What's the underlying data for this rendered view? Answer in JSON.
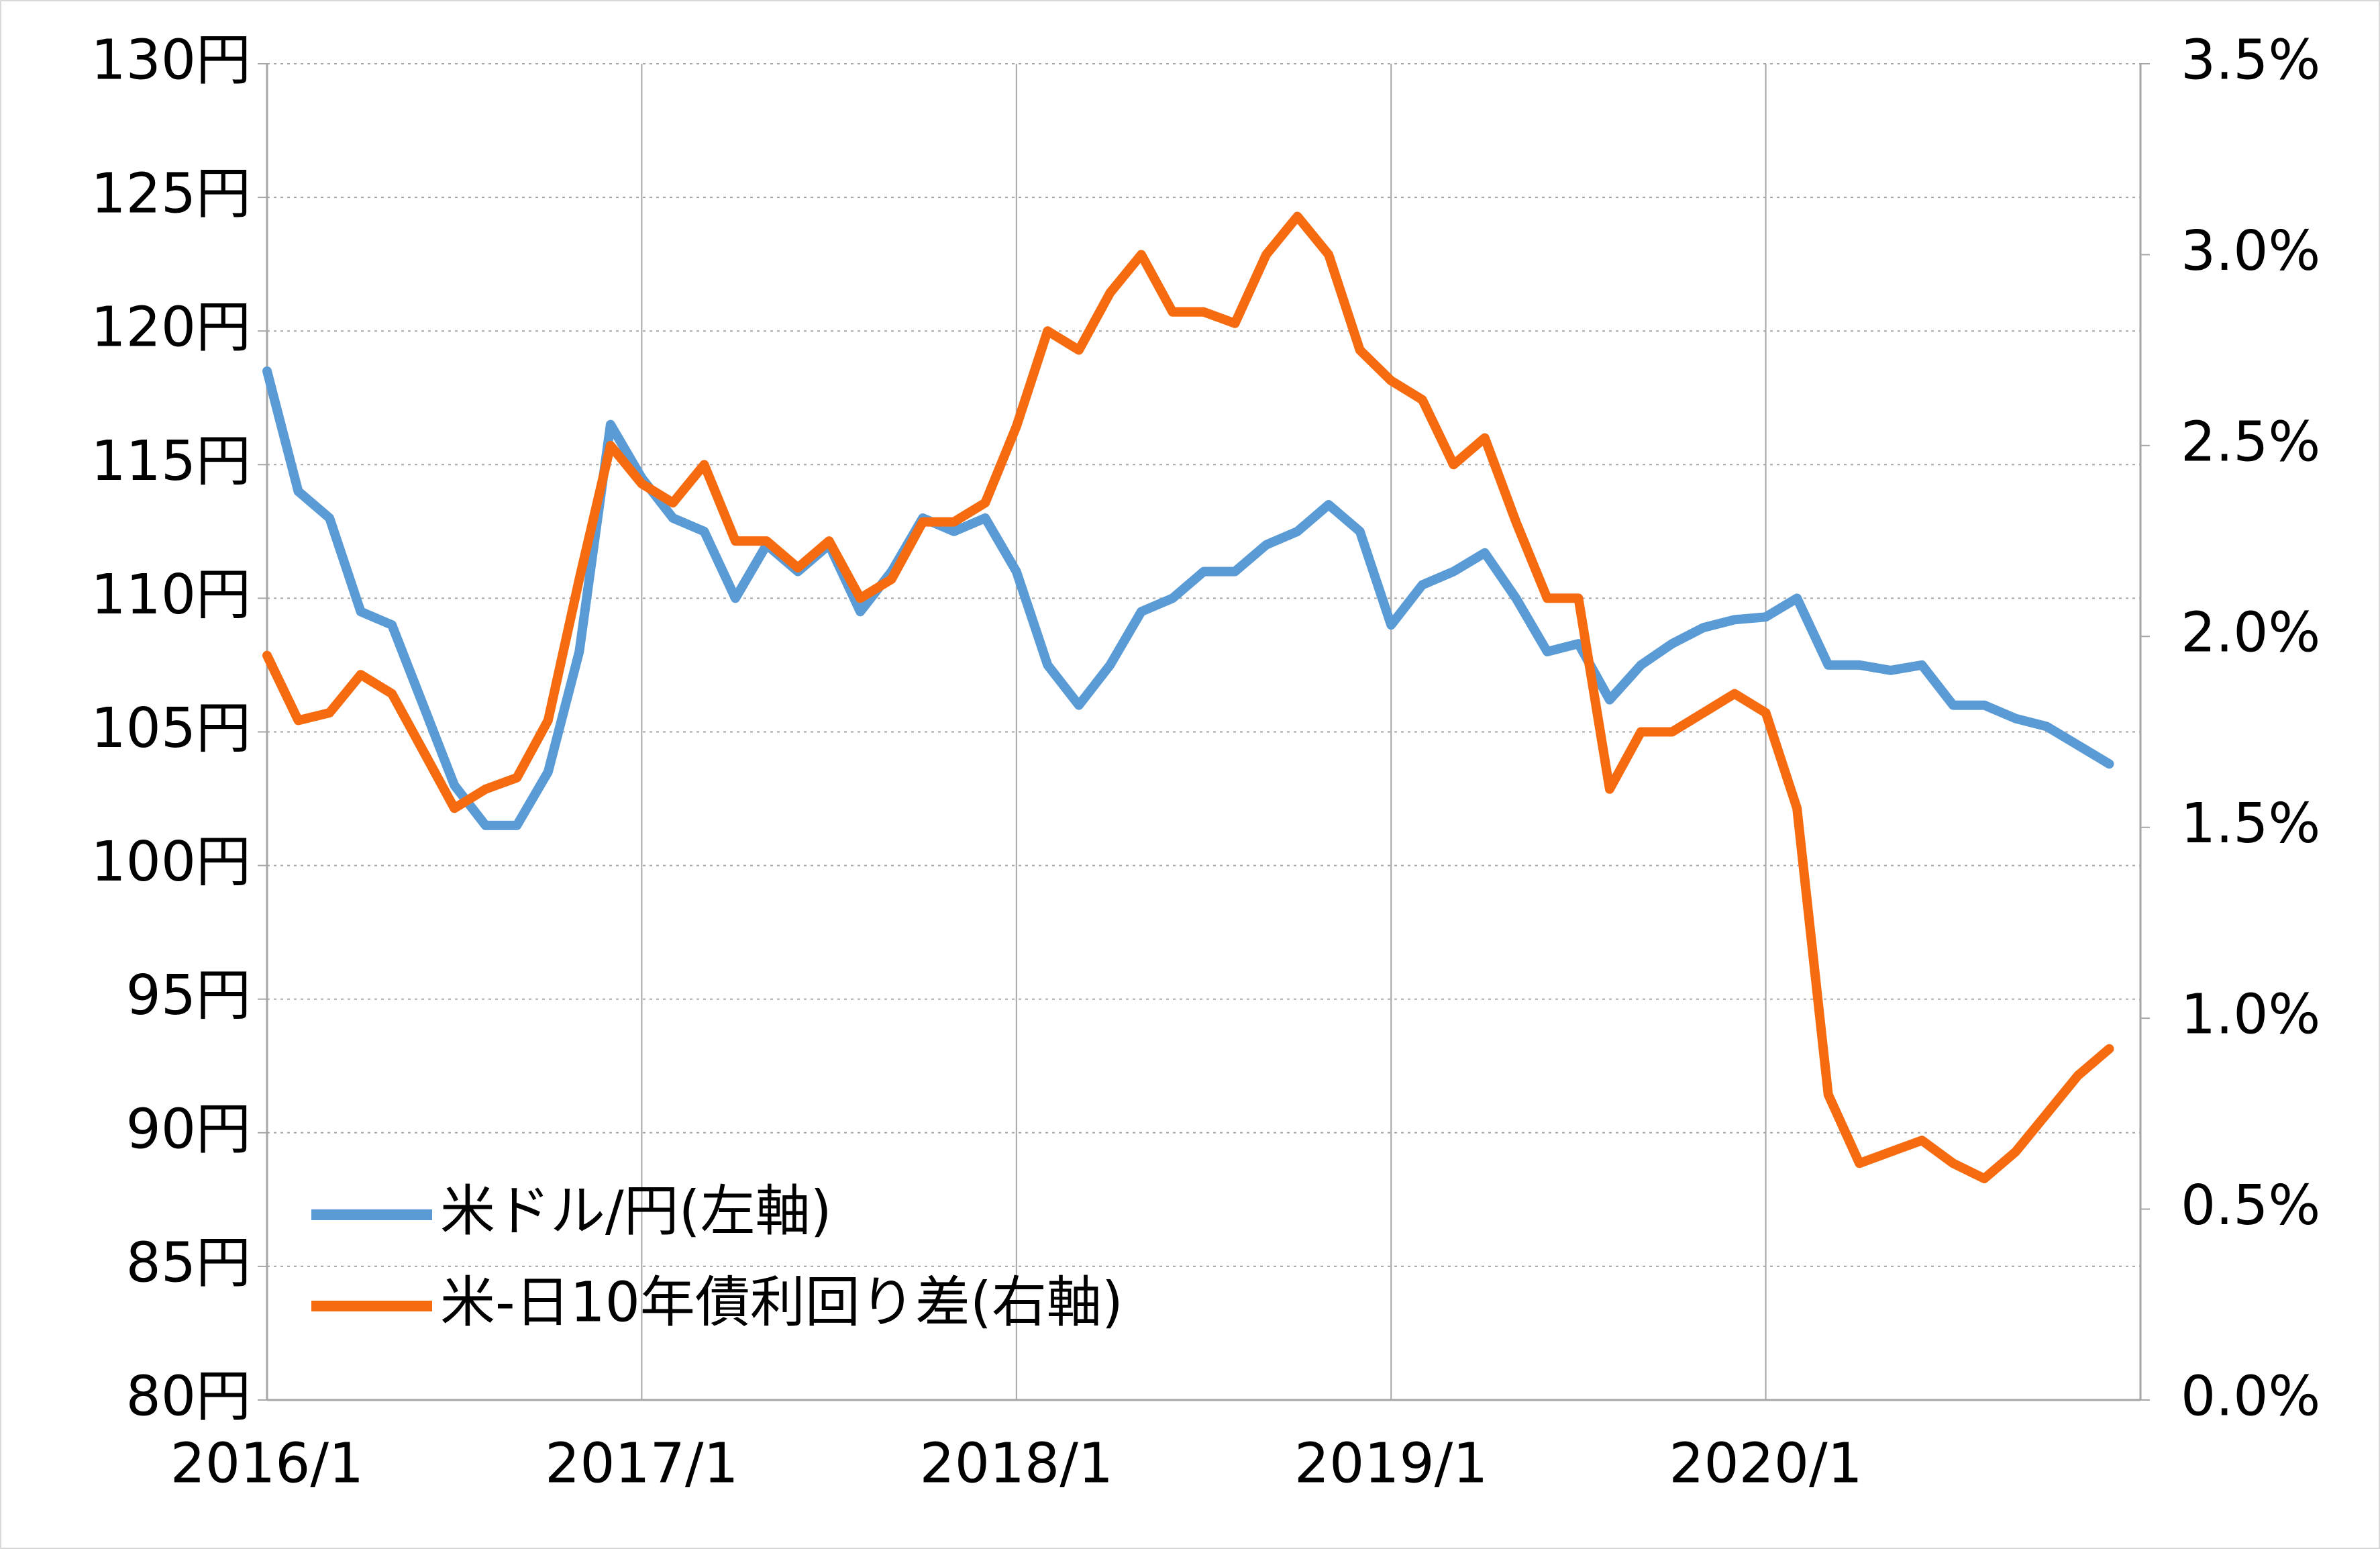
{
  "chart_data": {
    "type": "line",
    "x": [
      "2016/1",
      "2016/2",
      "2016/3",
      "2016/4",
      "2016/5",
      "2016/6",
      "2016/7",
      "2016/8",
      "2016/9",
      "2016/10",
      "2016/11",
      "2016/12",
      "2017/1",
      "2017/2",
      "2017/3",
      "2017/4",
      "2017/5",
      "2017/6",
      "2017/7",
      "2017/8",
      "2017/9",
      "2017/10",
      "2017/11",
      "2017/12",
      "2018/1",
      "2018/2",
      "2018/3",
      "2018/4",
      "2018/5",
      "2018/6",
      "2018/7",
      "2018/8",
      "2018/9",
      "2018/10",
      "2018/11",
      "2018/12",
      "2019/1",
      "2019/2",
      "2019/3",
      "2019/4",
      "2019/5",
      "2019/6",
      "2019/7",
      "2019/8",
      "2019/9",
      "2019/10",
      "2019/11",
      "2019/12",
      "2020/1",
      "2020/2",
      "2020/3",
      "2020/4",
      "2020/5",
      "2020/6",
      "2020/7",
      "2020/8",
      "2020/9",
      "2020/10",
      "2020/11",
      "2020/12"
    ],
    "xlim": [
      "2016/1",
      "2021/1"
    ],
    "xticks": [
      "2016/1",
      "2017/1",
      "2018/1",
      "2019/1",
      "2020/1"
    ],
    "ylim": [
      80,
      130
    ],
    "yticks": [
      {
        "value": 80,
        "label": "80円"
      },
      {
        "value": 85,
        "label": "85円"
      },
      {
        "value": 90,
        "label": "90円"
      },
      {
        "value": 95,
        "label": "95円"
      },
      {
        "value": 100,
        "label": "100円"
      },
      {
        "value": 105,
        "label": "105円"
      },
      {
        "value": 110,
        "label": "110円"
      },
      {
        "value": 115,
        "label": "115円"
      },
      {
        "value": 120,
        "label": "120円"
      },
      {
        "value": 125,
        "label": "125円"
      },
      {
        "value": 130,
        "label": "130円"
      }
    ],
    "y2lim": [
      0,
      3.5
    ],
    "y2ticks": [
      {
        "value": 0,
        "label": "0.0%"
      },
      {
        "value": 0.5,
        "label": "0.5%"
      },
      {
        "value": 1,
        "label": "1.0%"
      },
      {
        "value": 1.5,
        "label": "1.5%"
      },
      {
        "value": 2,
        "label": "2.0%"
      },
      {
        "value": 2.5,
        "label": "2.5%"
      },
      {
        "value": 3,
        "label": "3.0%"
      },
      {
        "value": 3.5,
        "label": "3.5%"
      }
    ],
    "grid": true,
    "legend": "lower-left",
    "series": [
      {
        "name": "米ドル/円(左軸)",
        "color": "#5b9bd5",
        "values": [
          118.5,
          114,
          113,
          109.5,
          109,
          106,
          103,
          101.5,
          101.5,
          103.5,
          108,
          116.5,
          114.5,
          113,
          112.5,
          110,
          112,
          111,
          112,
          109.5,
          111,
          113,
          112.5,
          113,
          111,
          107.5,
          106,
          107.5,
          109.5,
          110,
          111,
          111,
          112,
          112.5,
          113.5,
          112.5,
          109,
          110.5,
          111,
          111.7,
          110,
          108,
          108.3,
          106.2,
          107.5,
          108.3,
          108.9,
          109.2,
          109.3,
          110,
          107.5,
          107.5,
          107.3,
          107.5,
          106,
          106,
          105.5,
          105.2,
          104.5,
          103.8
        ]
      },
      {
        "name": "米-日10年債利回り差(右軸)",
        "color": "#f76b10",
        "axis": "y2",
        "values": [
          1.95,
          1.78,
          1.8,
          1.9,
          1.85,
          1.7,
          1.55,
          1.6,
          1.63,
          1.78,
          2.15,
          2.5,
          2.4,
          2.35,
          2.45,
          2.25,
          2.25,
          2.18,
          2.25,
          2.1,
          2.15,
          2.3,
          2.3,
          2.35,
          2.55,
          2.8,
          2.75,
          2.9,
          3.0,
          2.85,
          2.85,
          2.82,
          3.0,
          3.1,
          3.0,
          2.75,
          2.67,
          2.62,
          2.45,
          2.52,
          2.3,
          2.1,
          2.1,
          1.6,
          1.75,
          1.75,
          1.8,
          1.85,
          1.8,
          1.55,
          0.8,
          0.62,
          0.65,
          0.68,
          0.62,
          0.58,
          0.65,
          0.75,
          0.85,
          0.92
        ]
      }
    ]
  }
}
